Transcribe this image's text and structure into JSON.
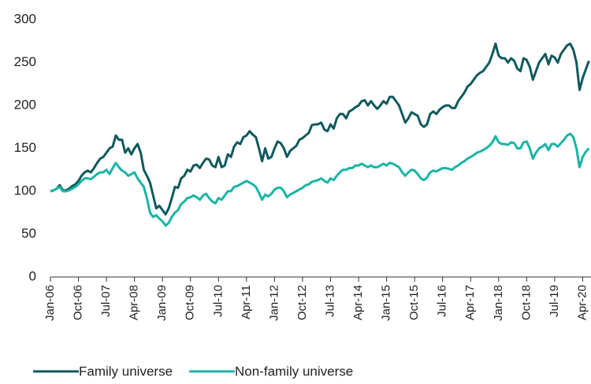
{
  "chart_data": {
    "type": "line",
    "categories": [
      "Jan-06",
      null,
      null,
      null,
      null,
      null,
      null,
      null,
      null,
      "Oct-06",
      null,
      null,
      null,
      null,
      null,
      null,
      null,
      null,
      "Jul-07",
      null,
      null,
      null,
      null,
      null,
      null,
      null,
      null,
      "Apr-08",
      null,
      null,
      null,
      null,
      null,
      null,
      null,
      null,
      "Jan-09",
      null,
      null,
      null,
      null,
      null,
      null,
      null,
      null,
      "Oct-09",
      null,
      null,
      null,
      null,
      null,
      null,
      null,
      null,
      "Jul-10",
      null,
      null,
      null,
      null,
      null,
      null,
      null,
      null,
      "Apr-11",
      null,
      null,
      null,
      null,
      null,
      null,
      null,
      null,
      "Jan-12",
      null,
      null,
      null,
      null,
      null,
      null,
      null,
      null,
      "Oct-12",
      null,
      null,
      null,
      null,
      null,
      null,
      null,
      null,
      "Jul-13",
      null,
      null,
      null,
      null,
      null,
      null,
      null,
      null,
      "Apr-14",
      null,
      null,
      null,
      null,
      null,
      null,
      null,
      null,
      "Jan-15",
      null,
      null,
      null,
      null,
      null,
      null,
      null,
      null,
      "Oct-15",
      null,
      null,
      null,
      null,
      null,
      null,
      null,
      null,
      "Jul-16",
      null,
      null,
      null,
      null,
      null,
      null,
      null,
      null,
      "Apr-17",
      null,
      null,
      null,
      null,
      null,
      null,
      null,
      null,
      "Jan-18",
      null,
      null,
      null,
      null,
      null,
      null,
      null,
      null,
      "Oct-18",
      null,
      null,
      null,
      null,
      null,
      null,
      null,
      null,
      "Jul-19",
      null,
      null,
      null,
      null,
      null,
      null,
      null,
      null,
      "Apr-20",
      null,
      null
    ],
    "series": [
      {
        "name": "Family universe",
        "color": "#0e5a5e",
        "values": [
          100,
          101,
          103,
          107,
          101,
          101,
          103,
          106,
          108,
          112,
          118,
          122,
          124,
          122,
          127,
          133,
          138,
          140,
          145,
          150,
          152,
          165,
          160,
          160,
          145,
          150,
          143,
          150,
          155,
          145,
          125,
          118,
          110,
          95,
          80,
          83,
          78,
          73,
          80,
          92,
          105,
          104,
          115,
          118,
          125,
          123,
          130,
          131,
          127,
          133,
          138,
          137,
          130,
          128,
          140,
          128,
          130,
          143,
          140,
          152,
          157,
          155,
          163,
          165,
          170,
          166,
          163,
          150,
          135,
          150,
          138,
          140,
          150,
          158,
          156,
          150,
          140,
          147,
          150,
          153,
          160,
          162,
          165,
          168,
          177,
          178,
          178,
          180,
          172,
          170,
          178,
          173,
          185,
          190,
          190,
          185,
          193,
          195,
          198,
          200,
          205,
          206,
          200,
          205,
          200,
          196,
          200,
          205,
          202,
          210,
          210,
          205,
          200,
          190,
          180,
          185,
          192,
          190,
          188,
          178,
          175,
          178,
          190,
          193,
          190,
          195,
          198,
          200,
          200,
          197,
          197,
          205,
          210,
          215,
          222,
          225,
          230,
          235,
          238,
          240,
          245,
          250,
          260,
          272,
          258,
          255,
          255,
          250,
          255,
          252,
          243,
          240,
          255,
          253,
          245,
          230,
          240,
          250,
          255,
          260,
          248,
          258,
          256,
          250,
          260,
          265,
          270,
          272,
          265,
          250,
          218,
          232,
          242,
          252
        ]
      },
      {
        "name": "Non-family universe",
        "color": "#19b5a5",
        "values": [
          100,
          101,
          103,
          105,
          100,
          100,
          101,
          103,
          105,
          108,
          112,
          115,
          115,
          114,
          117,
          120,
          122,
          122,
          125,
          120,
          127,
          133,
          128,
          124,
          122,
          118,
          120,
          122,
          115,
          110,
          105,
          92,
          75,
          70,
          72,
          68,
          65,
          60,
          63,
          70,
          75,
          78,
          85,
          88,
          92,
          93,
          95,
          93,
          90,
          95,
          97,
          92,
          88,
          86,
          92,
          90,
          95,
          100,
          100,
          105,
          106,
          108,
          110,
          112,
          110,
          108,
          105,
          98,
          90,
          96,
          94,
          97,
          102,
          104,
          104,
          100,
          93,
          96,
          98,
          100,
          102,
          104,
          107,
          108,
          111,
          112,
          113,
          115,
          112,
          110,
          115,
          113,
          118,
          122,
          125,
          125,
          127,
          127,
          130,
          130,
          132,
          130,
          128,
          130,
          128,
          128,
          130,
          132,
          130,
          133,
          132,
          130,
          128,
          122,
          118,
          122,
          125,
          124,
          120,
          115,
          113,
          116,
          122,
          124,
          123,
          125,
          127,
          127,
          126,
          125,
          128,
          130,
          133,
          135,
          138,
          140,
          142,
          145,
          146,
          148,
          150,
          153,
          157,
          164,
          157,
          155,
          155,
          154,
          157,
          156,
          150,
          150,
          157,
          158,
          150,
          138,
          145,
          150,
          152,
          155,
          148,
          155,
          155,
          152,
          156,
          160,
          165,
          167,
          163,
          150,
          128,
          140,
          146,
          150
        ]
      }
    ],
    "ylim": [
      0,
      300
    ],
    "yticks": [
      0,
      50,
      100,
      150,
      200,
      250,
      300
    ],
    "grid": false
  }
}
